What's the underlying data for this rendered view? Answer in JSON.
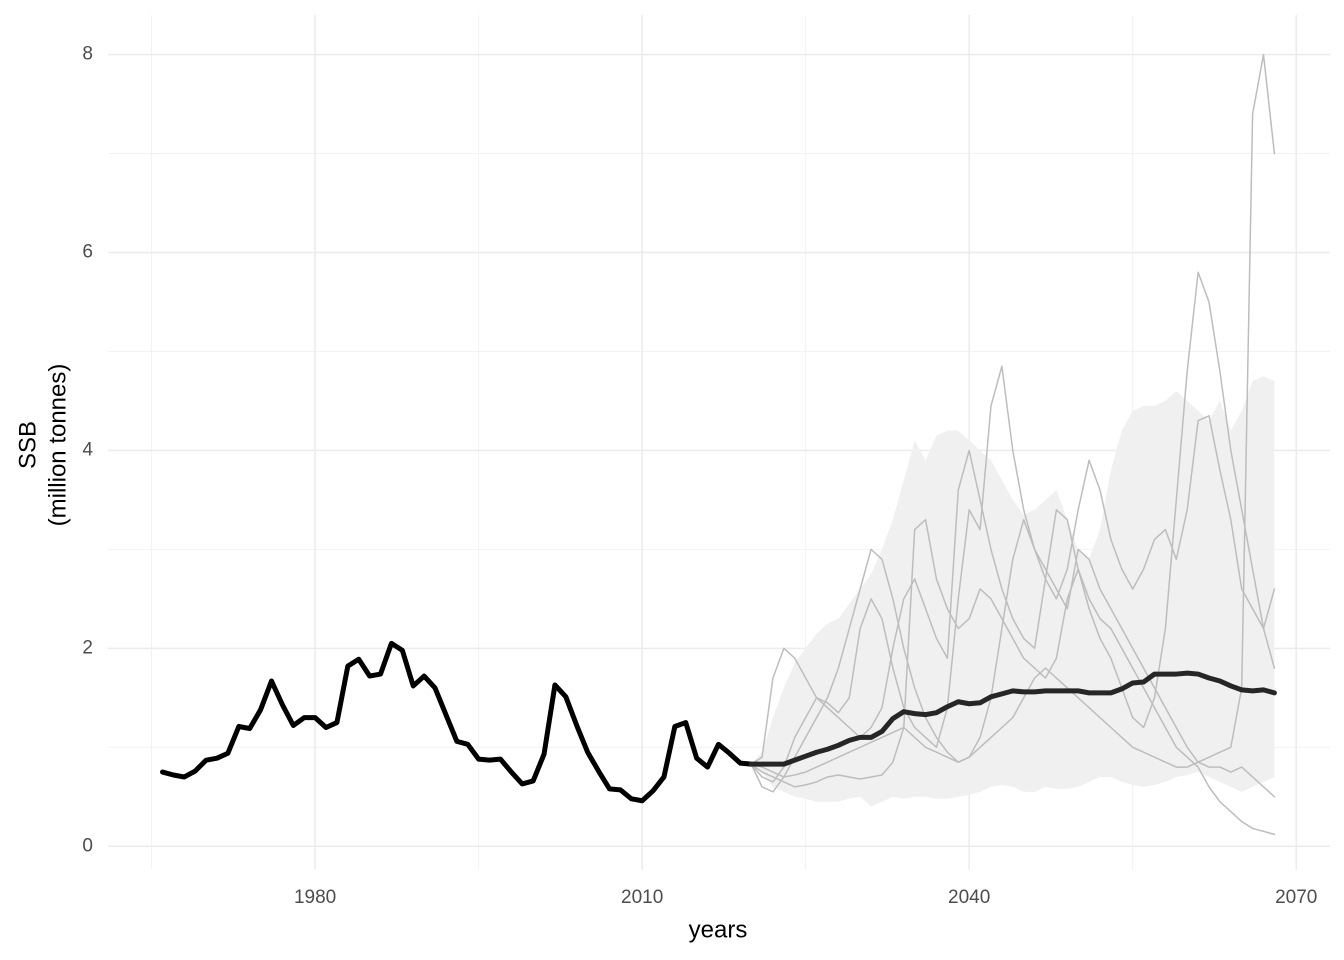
{
  "chart_data": {
    "type": "line",
    "xlabel": "years",
    "ylabel": [
      "SSB",
      "(million tonnes)"
    ],
    "xlim": [
      1961,
      2073.1
    ],
    "ylim": [
      -0.24,
      8.4
    ],
    "xticks": [
      1980,
      2010,
      2040,
      2070
    ],
    "yticks": [
      0,
      2,
      4,
      6,
      8
    ],
    "xminor": [
      1965,
      1995,
      2025,
      2055
    ],
    "yminor": [
      1,
      3,
      5,
      7
    ],
    "grid": true,
    "band": {
      "color": "#f0f0f0",
      "x": [
        2020,
        2021,
        2022,
        2023,
        2024,
        2025,
        2026,
        2027,
        2028,
        2029,
        2030,
        2031,
        2032,
        2033,
        2034,
        2035,
        2036,
        2037,
        2038,
        2039,
        2040,
        2041,
        2042,
        2043,
        2044,
        2045,
        2046,
        2047,
        2048,
        2049,
        2050,
        2051,
        2052,
        2053,
        2054,
        2055,
        2056,
        2057,
        2058,
        2059,
        2060,
        2061,
        2062,
        2063,
        2064,
        2065,
        2066,
        2067,
        2068
      ],
      "upper": [
        0.83,
        0.95,
        1.3,
        1.6,
        1.85,
        2.0,
        2.15,
        2.25,
        2.3,
        2.45,
        2.6,
        2.75,
        3.0,
        3.3,
        3.7,
        4.1,
        3.9,
        4.15,
        4.2,
        4.2,
        4.1,
        4.0,
        3.9,
        3.7,
        3.5,
        3.35,
        3.4,
        3.5,
        3.6,
        3.3,
        3.0,
        2.9,
        3.2,
        3.8,
        4.2,
        4.4,
        4.45,
        4.45,
        4.5,
        4.6,
        4.5,
        4.4,
        4.3,
        4.5,
        4.2,
        4.4,
        4.7,
        4.75,
        4.7
      ],
      "lower": [
        0.83,
        0.75,
        0.6,
        0.55,
        0.5,
        0.48,
        0.45,
        0.45,
        0.45,
        0.48,
        0.5,
        0.4,
        0.45,
        0.5,
        0.48,
        0.5,
        0.5,
        0.48,
        0.48,
        0.5,
        0.52,
        0.55,
        0.6,
        0.62,
        0.6,
        0.55,
        0.55,
        0.6,
        0.58,
        0.58,
        0.6,
        0.65,
        0.7,
        0.7,
        0.65,
        0.62,
        0.6,
        0.62,
        0.65,
        0.7,
        0.72,
        0.75,
        0.7,
        0.65,
        0.6,
        0.55,
        0.6,
        0.65,
        0.7
      ]
    },
    "series": [
      {
        "color": "#bdbdbd",
        "width": 1.5,
        "x": [
          2020,
          2021,
          2022,
          2023,
          2024,
          2025,
          2026,
          2027,
          2028,
          2029,
          2030,
          2031,
          2032,
          2033,
          2034,
          2035,
          2036,
          2037,
          2038,
          2039,
          2040,
          2041,
          2042,
          2043,
          2044,
          2045,
          2046,
          2047,
          2048,
          2049,
          2050,
          2051,
          2052,
          2053,
          2054,
          2055,
          2056,
          2057,
          2058,
          2059,
          2060,
          2061,
          2062,
          2063,
          2064,
          2065,
          2066,
          2067,
          2068
        ],
        "values": [
          0.83,
          0.8,
          0.75,
          0.7,
          0.72,
          0.75,
          0.8,
          0.85,
          0.9,
          0.95,
          1.0,
          1.05,
          1.1,
          1.15,
          1.2,
          1.1,
          1.0,
          0.95,
          0.9,
          0.85,
          0.9,
          1.0,
          1.1,
          1.2,
          1.3,
          1.5,
          1.7,
          1.8,
          1.7,
          1.6,
          1.5,
          1.4,
          1.3,
          1.2,
          1.1,
          1.0,
          0.95,
          0.9,
          0.85,
          0.8,
          0.8,
          0.85,
          0.9,
          0.95,
          1.0,
          1.6,
          7.4,
          8.0,
          7.0
        ]
      },
      {
        "color": "#bdbdbd",
        "width": 1.5,
        "x": [
          2020,
          2021,
          2022,
          2023,
          2024,
          2025,
          2026,
          2027,
          2028,
          2029,
          2030,
          2031,
          2032,
          2033,
          2034,
          2035,
          2036,
          2037,
          2038,
          2039,
          2040,
          2041,
          2042,
          2043,
          2044,
          2045,
          2046,
          2047,
          2048,
          2049,
          2050,
          2051,
          2052,
          2053,
          2054,
          2055,
          2056,
          2057,
          2058,
          2059,
          2060,
          2061,
          2062,
          2063,
          2064,
          2065,
          2066,
          2067,
          2068
        ],
        "values": [
          0.83,
          0.9,
          1.7,
          2.0,
          1.9,
          1.7,
          1.5,
          1.4,
          1.3,
          1.2,
          1.1,
          1.2,
          1.4,
          2.0,
          2.5,
          2.7,
          2.4,
          2.1,
          1.9,
          3.6,
          4.0,
          3.5,
          3.0,
          2.6,
          2.3,
          2.1,
          2.0,
          2.7,
          3.4,
          3.3,
          2.8,
          2.4,
          2.1,
          1.9,
          1.6,
          1.3,
          1.2,
          1.5,
          2.2,
          3.5,
          4.8,
          5.8,
          5.5,
          4.8,
          4.0,
          3.4,
          2.8,
          2.2,
          1.8
        ]
      },
      {
        "color": "#bdbdbd",
        "width": 1.5,
        "x": [
          2020,
          2021,
          2022,
          2023,
          2024,
          2025,
          2026,
          2027,
          2028,
          2029,
          2030,
          2031,
          2032,
          2033,
          2034,
          2035,
          2036,
          2037,
          2038,
          2039,
          2040,
          2041,
          2042,
          2043,
          2044,
          2045,
          2046,
          2047,
          2048,
          2049,
          2050,
          2051,
          2052,
          2053,
          2054,
          2055,
          2056,
          2057,
          2058,
          2059,
          2060,
          2061,
          2062,
          2063,
          2064,
          2065,
          2066,
          2067,
          2068
        ],
        "values": [
          0.83,
          0.7,
          0.65,
          0.8,
          1.1,
          1.3,
          1.5,
          1.45,
          1.35,
          1.5,
          2.2,
          2.5,
          2.3,
          1.8,
          1.4,
          1.2,
          1.1,
          1.0,
          1.4,
          2.5,
          3.4,
          3.2,
          4.45,
          4.85,
          4.0,
          3.4,
          3.0,
          2.8,
          2.6,
          2.4,
          3.0,
          2.9,
          2.6,
          2.4,
          2.2,
          2.0,
          1.8,
          1.6,
          1.4,
          1.2,
          1.0,
          0.85,
          0.8,
          0.8,
          0.75,
          0.8,
          0.7,
          0.6,
          0.5
        ]
      },
      {
        "color": "#bdbdbd",
        "width": 1.5,
        "x": [
          2020,
          2021,
          2022,
          2023,
          2024,
          2025,
          2026,
          2027,
          2028,
          2029,
          2030,
          2031,
          2032,
          2033,
          2034,
          2035,
          2036,
          2037,
          2038,
          2039,
          2040,
          2041,
          2042,
          2043,
          2044,
          2045,
          2046,
          2047,
          2048,
          2049,
          2050,
          2051,
          2052,
          2053,
          2054,
          2055,
          2056,
          2057,
          2058,
          2059,
          2060,
          2061,
          2062,
          2063,
          2064,
          2065,
          2066,
          2067,
          2068
        ],
        "values": [
          0.83,
          0.6,
          0.55,
          0.7,
          0.9,
          1.1,
          1.3,
          1.5,
          1.8,
          2.2,
          2.6,
          3.0,
          2.9,
          2.5,
          2.0,
          1.6,
          1.3,
          1.1,
          0.95,
          0.85,
          0.9,
          1.1,
          1.5,
          2.2,
          2.9,
          3.3,
          3.0,
          2.7,
          2.5,
          2.8,
          3.4,
          3.9,
          3.6,
          3.1,
          2.8,
          2.6,
          2.8,
          3.1,
          3.2,
          2.9,
          3.4,
          4.3,
          4.35,
          3.8,
          3.3,
          2.6,
          2.4,
          2.2,
          2.6
        ]
      },
      {
        "color": "#bdbdbd",
        "width": 1.5,
        "x": [
          2020,
          2021,
          2022,
          2023,
          2024,
          2025,
          2026,
          2027,
          2028,
          2029,
          2030,
          2031,
          2032,
          2033,
          2034,
          2035,
          2036,
          2037,
          2038,
          2039,
          2040,
          2041,
          2042,
          2043,
          2044,
          2045,
          2046,
          2047,
          2048,
          2049,
          2050,
          2051,
          2052,
          2053,
          2054,
          2055,
          2056,
          2057,
          2058,
          2059,
          2060,
          2061,
          2062,
          2063,
          2064,
          2065,
          2066,
          2067,
          2068
        ],
        "values": [
          0.83,
          0.75,
          0.7,
          0.65,
          0.6,
          0.62,
          0.65,
          0.7,
          0.72,
          0.7,
          0.68,
          0.7,
          0.72,
          0.85,
          1.2,
          3.2,
          3.3,
          2.7,
          2.4,
          2.2,
          2.3,
          2.6,
          2.5,
          2.3,
          2.1,
          1.9,
          1.8,
          1.7,
          1.9,
          2.5,
          2.8,
          2.5,
          2.3,
          2.2,
          2.0,
          1.8,
          1.6,
          1.4,
          1.2,
          1.0,
          0.9,
          0.8,
          0.6,
          0.45,
          0.35,
          0.25,
          0.18,
          0.15,
          0.12
        ]
      },
      {
        "color": "#000000",
        "width": 5,
        "x": [
          1966,
          1967,
          1968,
          1969,
          1970,
          1971,
          1972,
          1973,
          1974,
          1975,
          1976,
          1977,
          1978,
          1979,
          1980,
          1981,
          1982,
          1983,
          1984,
          1985,
          1986,
          1987,
          1988,
          1989,
          1990,
          1991,
          1992,
          1993,
          1994,
          1995,
          1996,
          1997,
          1998,
          1999,
          2000,
          2001,
          2002,
          2003,
          2004,
          2005,
          2006,
          2007,
          2008,
          2009,
          2010,
          2011,
          2012,
          2013,
          2014,
          2015,
          2016,
          2017,
          2018,
          2019,
          2020
        ],
        "values": [
          0.75,
          0.72,
          0.7,
          0.76,
          0.87,
          0.89,
          0.94,
          1.21,
          1.19,
          1.38,
          1.67,
          1.43,
          1.22,
          1.3,
          1.3,
          1.2,
          1.25,
          1.82,
          1.89,
          1.72,
          1.74,
          2.05,
          1.98,
          1.62,
          1.72,
          1.6,
          1.33,
          1.06,
          1.03,
          0.88,
          0.87,
          0.88,
          0.75,
          0.63,
          0.66,
          0.93,
          1.63,
          1.51,
          1.22,
          0.95,
          0.76,
          0.58,
          0.57,
          0.48,
          0.46,
          0.56,
          0.7,
          1.21,
          1.25,
          0.89,
          0.8,
          1.03,
          0.94,
          0.84,
          0.83
        ]
      },
      {
        "color": "#262626",
        "width": 5,
        "x": [
          2020,
          2021,
          2022,
          2023,
          2024,
          2025,
          2026,
          2027,
          2028,
          2029,
          2030,
          2031,
          2032,
          2033,
          2034,
          2035,
          2036,
          2037,
          2038,
          2039,
          2040,
          2041,
          2042,
          2043,
          2044,
          2045,
          2046,
          2047,
          2048,
          2049,
          2050,
          2051,
          2052,
          2053,
          2054,
          2055,
          2056,
          2057,
          2058,
          2059,
          2060,
          2061,
          2062,
          2063,
          2064,
          2065,
          2066,
          2067,
          2068
        ],
        "values": [
          0.83,
          0.83,
          0.83,
          0.83,
          0.87,
          0.91,
          0.95,
          0.98,
          1.02,
          1.07,
          1.1,
          1.1,
          1.16,
          1.29,
          1.36,
          1.34,
          1.33,
          1.35,
          1.41,
          1.46,
          1.44,
          1.45,
          1.51,
          1.54,
          1.57,
          1.56,
          1.56,
          1.57,
          1.57,
          1.57,
          1.57,
          1.55,
          1.55,
          1.55,
          1.59,
          1.65,
          1.66,
          1.74,
          1.74,
          1.74,
          1.75,
          1.74,
          1.7,
          1.67,
          1.62,
          1.58,
          1.57,
          1.58,
          1.55
        ]
      }
    ]
  }
}
